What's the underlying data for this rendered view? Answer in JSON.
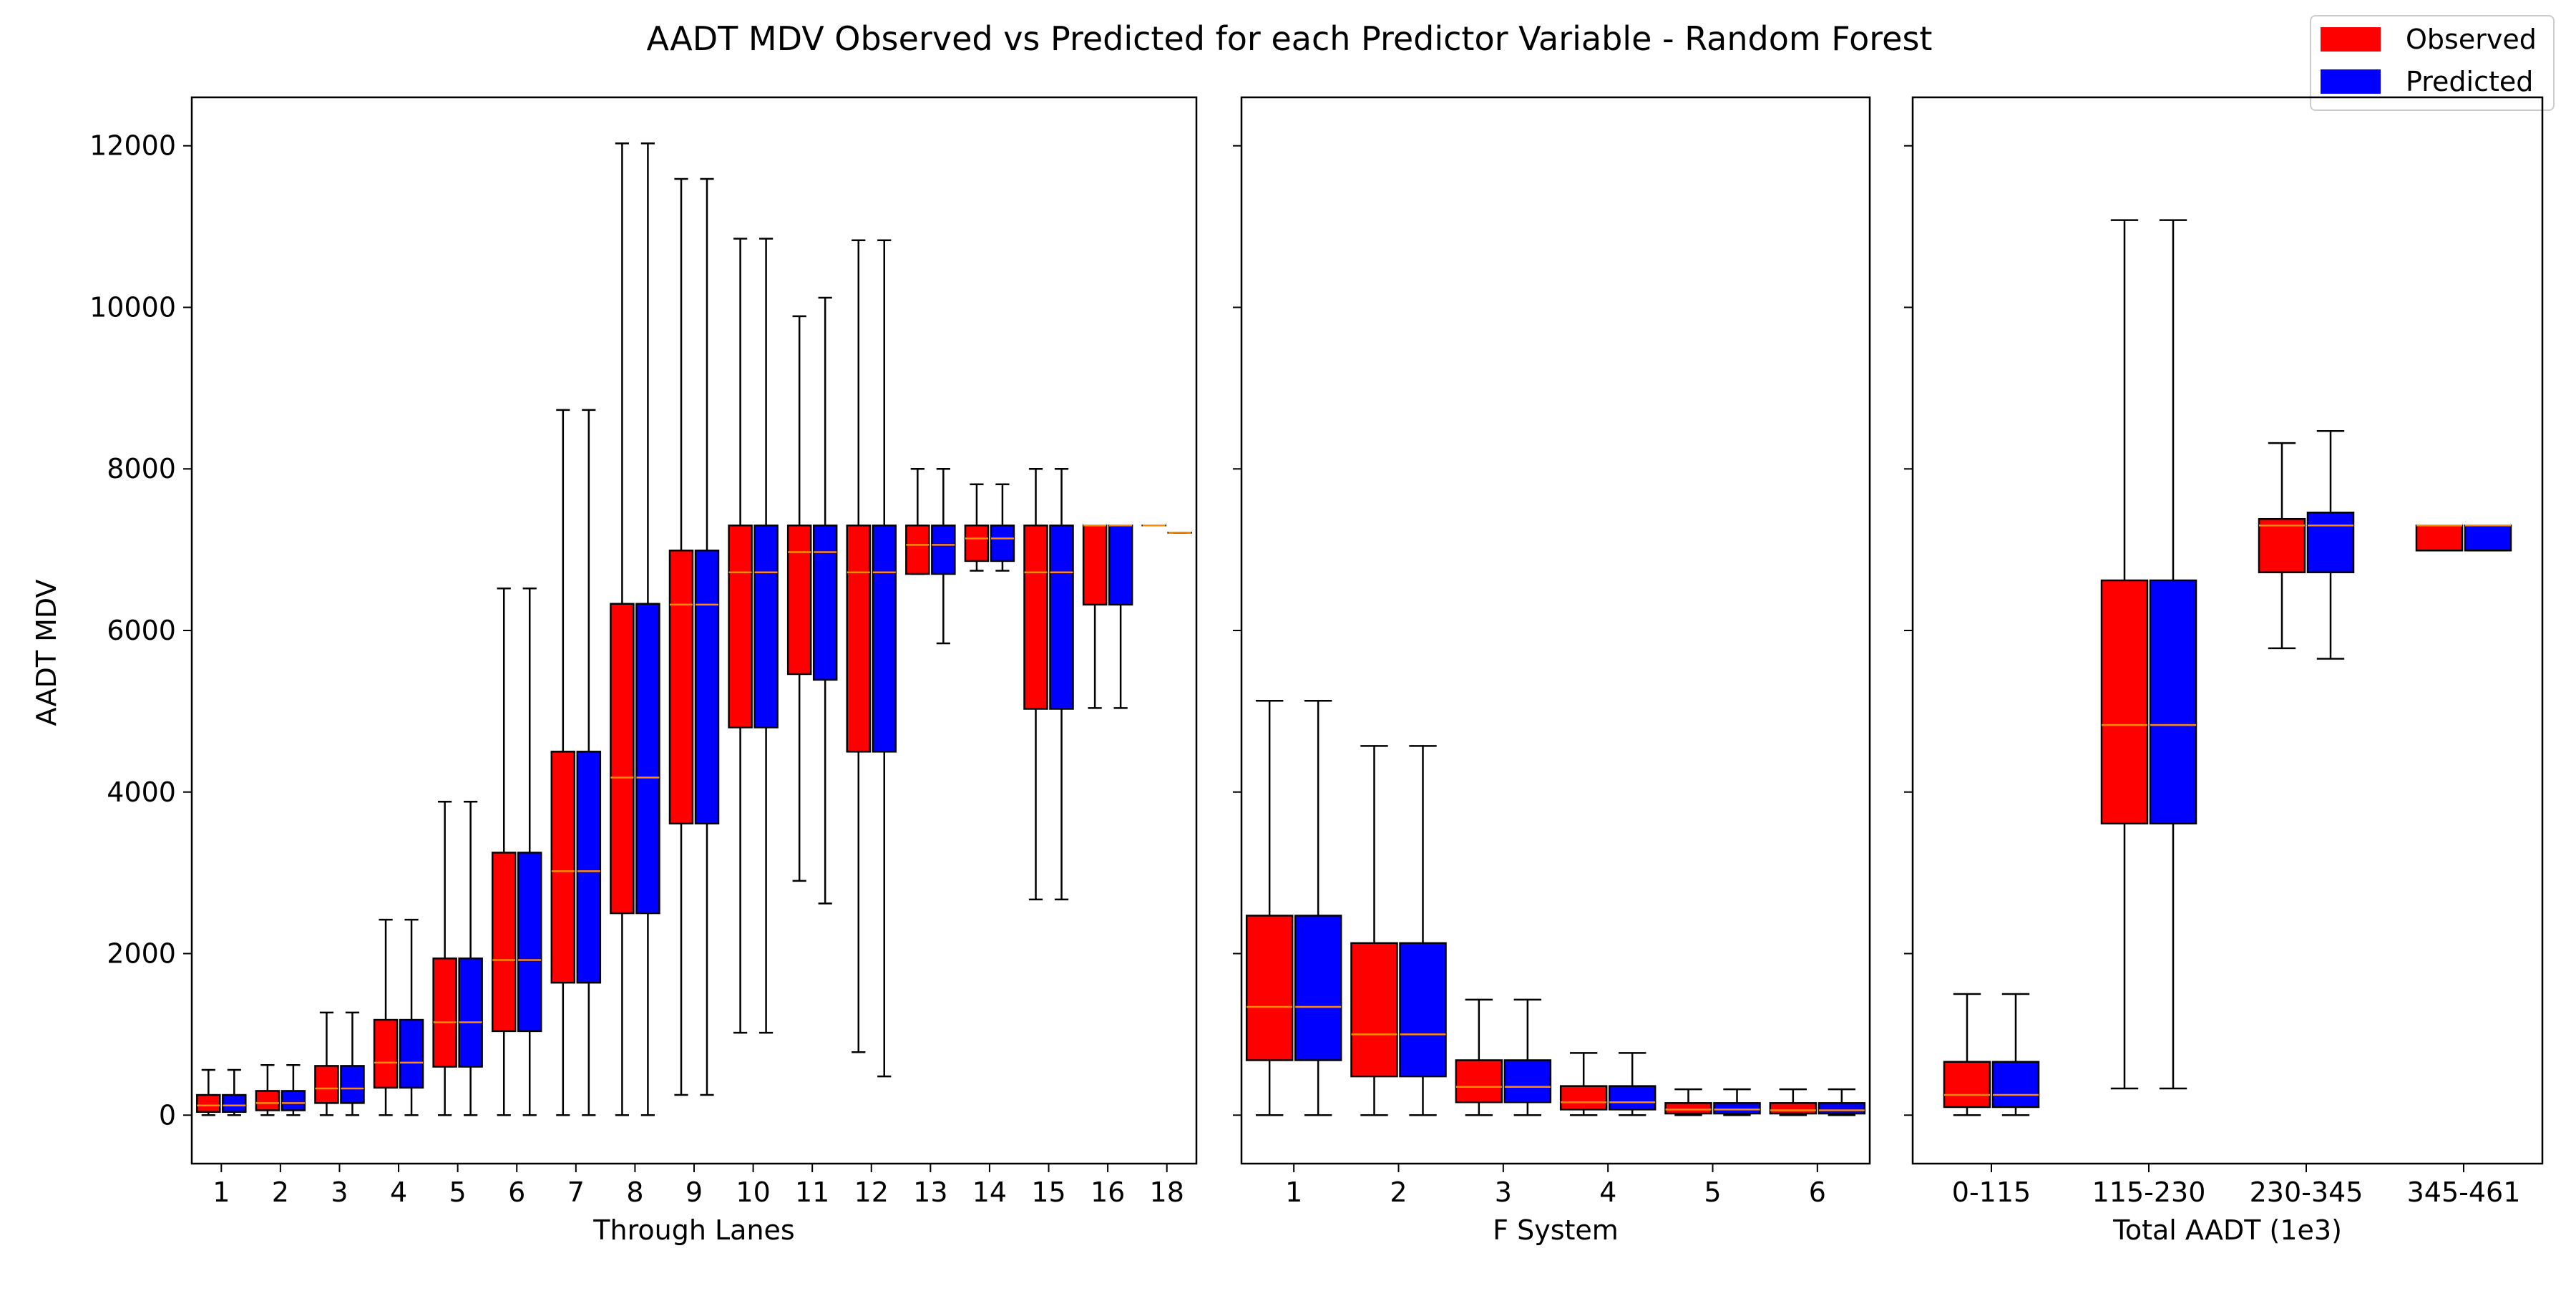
{
  "figure_title": "AADT MDV Observed vs Predicted for each Predictor Variable - Random Forest",
  "ylabel": "AADT MDV",
  "legend": [
    {
      "label": "Observed",
      "color": "#ff0000"
    },
    {
      "label": "Predicted",
      "color": "#0000ff"
    }
  ],
  "colors": {
    "observed": "#ff0000",
    "predicted": "#0000ff",
    "median": "#ff8c00",
    "edge": "#000000"
  },
  "chart_data": [
    {
      "type": "boxplot",
      "xlabel": "Through Lanes",
      "ylim": [
        -600,
        12600
      ],
      "yticks": [
        0,
        2000,
        4000,
        6000,
        8000,
        10000,
        12000
      ],
      "groups": [
        {
          "label": "1",
          "observed": {
            "min": 0,
            "q1": 40,
            "median": 120,
            "q3": 250,
            "max": 560
          },
          "predicted": {
            "min": 0,
            "q1": 40,
            "median": 120,
            "q3": 250,
            "max": 560
          }
        },
        {
          "label": "2",
          "observed": {
            "min": 0,
            "q1": 60,
            "median": 150,
            "q3": 300,
            "max": 620
          },
          "predicted": {
            "min": 0,
            "q1": 60,
            "median": 150,
            "q3": 300,
            "max": 620
          }
        },
        {
          "label": "3",
          "observed": {
            "min": 0,
            "q1": 150,
            "median": 330,
            "q3": 610,
            "max": 1270
          },
          "predicted": {
            "min": 0,
            "q1": 150,
            "median": 330,
            "q3": 610,
            "max": 1270
          }
        },
        {
          "label": "4",
          "observed": {
            "min": 0,
            "q1": 340,
            "median": 650,
            "q3": 1180,
            "max": 2420
          },
          "predicted": {
            "min": 0,
            "q1": 340,
            "median": 650,
            "q3": 1180,
            "max": 2420
          }
        },
        {
          "label": "5",
          "observed": {
            "min": 0,
            "q1": 600,
            "median": 1150,
            "q3": 1940,
            "max": 3880
          },
          "predicted": {
            "min": 0,
            "q1": 600,
            "median": 1150,
            "q3": 1940,
            "max": 3880
          }
        },
        {
          "label": "6",
          "observed": {
            "min": 0,
            "q1": 1040,
            "median": 1920,
            "q3": 3250,
            "max": 6520
          },
          "predicted": {
            "min": 0,
            "q1": 1040,
            "median": 1920,
            "q3": 3250,
            "max": 6520
          }
        },
        {
          "label": "7",
          "observed": {
            "min": 0,
            "q1": 1640,
            "median": 3020,
            "q3": 4500,
            "max": 8730
          },
          "predicted": {
            "min": 0,
            "q1": 1640,
            "median": 3020,
            "q3": 4500,
            "max": 8730
          }
        },
        {
          "label": "8",
          "observed": {
            "min": 0,
            "q1": 2500,
            "median": 4180,
            "q3": 6330,
            "max": 12030
          },
          "predicted": {
            "min": 0,
            "q1": 2500,
            "median": 4180,
            "q3": 6330,
            "max": 12030
          }
        },
        {
          "label": "9",
          "observed": {
            "min": 250,
            "q1": 3610,
            "median": 6320,
            "q3": 6990,
            "max": 11590
          },
          "predicted": {
            "min": 250,
            "q1": 3610,
            "median": 6320,
            "q3": 6990,
            "max": 11590
          }
        },
        {
          "label": "10",
          "observed": {
            "min": 1020,
            "q1": 4800,
            "median": 6720,
            "q3": 7300,
            "max": 10850
          },
          "predicted": {
            "min": 1020,
            "q1": 4800,
            "median": 6720,
            "q3": 7300,
            "max": 10850
          }
        },
        {
          "label": "11",
          "observed": {
            "min": 2900,
            "q1": 5460,
            "median": 6970,
            "q3": 7300,
            "max": 9890
          },
          "predicted": {
            "min": 2620,
            "q1": 5390,
            "median": 6970,
            "q3": 7300,
            "max": 10120
          }
        },
        {
          "label": "12",
          "observed": {
            "min": 780,
            "q1": 4500,
            "median": 6720,
            "q3": 7300,
            "max": 10830
          },
          "predicted": {
            "min": 480,
            "q1": 4500,
            "median": 6720,
            "q3": 7300,
            "max": 10830
          }
        },
        {
          "label": "13",
          "observed": {
            "min": 6700,
            "q1": 6700,
            "median": 7060,
            "q3": 7300,
            "max": 8000
          },
          "predicted": {
            "min": 5840,
            "q1": 6700,
            "median": 7060,
            "q3": 7300,
            "max": 8000
          }
        },
        {
          "label": "14",
          "observed": {
            "min": 6740,
            "q1": 6860,
            "median": 7140,
            "q3": 7300,
            "max": 7810
          },
          "predicted": {
            "min": 6740,
            "q1": 6860,
            "median": 7140,
            "q3": 7300,
            "max": 7810
          }
        },
        {
          "label": "15",
          "observed": {
            "min": 2670,
            "q1": 5030,
            "median": 6720,
            "q3": 7300,
            "max": 8000
          },
          "predicted": {
            "min": 2670,
            "q1": 5030,
            "median": 6720,
            "q3": 7300,
            "max": 8000
          }
        },
        {
          "label": "16",
          "observed": {
            "min": 5040,
            "q1": 6320,
            "median": 7300,
            "q3": 7300,
            "max": 7300
          },
          "predicted": {
            "min": 5040,
            "q1": 6320,
            "median": 7300,
            "q3": 7300,
            "max": 7300
          }
        },
        {
          "label": "18",
          "observed": {
            "min": 7300,
            "q1": 7300,
            "median": 7300,
            "q3": 7300,
            "max": 7300
          },
          "predicted": {
            "min": 7210,
            "q1": 7210,
            "median": 7210,
            "q3": 7210,
            "max": 7210
          }
        }
      ]
    },
    {
      "type": "boxplot",
      "xlabel": "F System",
      "ylim": [
        -600,
        12600
      ],
      "yticks": [
        0,
        2000,
        4000,
        6000,
        8000,
        10000,
        12000
      ],
      "groups": [
        {
          "label": "1",
          "observed": {
            "min": 0,
            "q1": 680,
            "median": 1340,
            "q3": 2470,
            "max": 5130
          },
          "predicted": {
            "min": 0,
            "q1": 680,
            "median": 1340,
            "q3": 2470,
            "max": 5130
          }
        },
        {
          "label": "2",
          "observed": {
            "min": 0,
            "q1": 480,
            "median": 1000,
            "q3": 2130,
            "max": 4570
          },
          "predicted": {
            "min": 0,
            "q1": 480,
            "median": 1000,
            "q3": 2130,
            "max": 4570
          }
        },
        {
          "label": "3",
          "observed": {
            "min": 0,
            "q1": 160,
            "median": 350,
            "q3": 680,
            "max": 1430
          },
          "predicted": {
            "min": 0,
            "q1": 160,
            "median": 350,
            "q3": 680,
            "max": 1430
          }
        },
        {
          "label": "4",
          "observed": {
            "min": 0,
            "q1": 70,
            "median": 160,
            "q3": 360,
            "max": 770
          },
          "predicted": {
            "min": 0,
            "q1": 70,
            "median": 160,
            "q3": 360,
            "max": 770
          }
        },
        {
          "label": "5",
          "observed": {
            "min": 0,
            "q1": 20,
            "median": 70,
            "q3": 150,
            "max": 320
          },
          "predicted": {
            "min": 0,
            "q1": 20,
            "median": 70,
            "q3": 150,
            "max": 320
          }
        },
        {
          "label": "6",
          "observed": {
            "min": 0,
            "q1": 20,
            "median": 60,
            "q3": 150,
            "max": 320
          },
          "predicted": {
            "min": 0,
            "q1": 20,
            "median": 60,
            "q3": 150,
            "max": 320
          }
        }
      ]
    },
    {
      "type": "boxplot",
      "xlabel": "Total AADT (1e3)",
      "ylim": [
        -600,
        12600
      ],
      "yticks": [
        0,
        2000,
        4000,
        6000,
        8000,
        10000,
        12000
      ],
      "groups": [
        {
          "label": "0-115",
          "observed": {
            "min": 0,
            "q1": 100,
            "median": 250,
            "q3": 660,
            "max": 1500
          },
          "predicted": {
            "min": 0,
            "q1": 100,
            "median": 250,
            "q3": 660,
            "max": 1500
          }
        },
        {
          "label": "115-230",
          "observed": {
            "min": 330,
            "q1": 3610,
            "median": 4830,
            "q3": 6620,
            "max": 11080
          },
          "predicted": {
            "min": 330,
            "q1": 3610,
            "median": 4830,
            "q3": 6620,
            "max": 11080
          }
        },
        {
          "label": "230-345",
          "observed": {
            "min": 5780,
            "q1": 6720,
            "median": 7300,
            "q3": 7380,
            "max": 8320
          },
          "predicted": {
            "min": 5650,
            "q1": 6720,
            "median": 7300,
            "q3": 7460,
            "max": 8470
          }
        },
        {
          "label": "345-461",
          "observed": {
            "min": 6990,
            "q1": 6990,
            "median": 7300,
            "q3": 7300,
            "max": 7300
          },
          "predicted": {
            "min": 6990,
            "q1": 6990,
            "median": 7300,
            "q3": 7300,
            "max": 7300
          }
        }
      ]
    }
  ]
}
